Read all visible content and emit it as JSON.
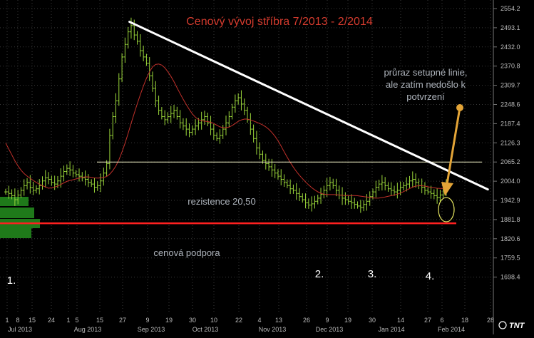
{
  "chart_data": {
    "type": "ohlc",
    "title": "Cenový vývoj stříbra 7/2013 - 2/2014",
    "y_axis": {
      "ticks": [
        "2554.2",
        "2493.1",
        "2432.0",
        "2370.8",
        "2309.7",
        "2248.6",
        "2187.4",
        "2126.3",
        "2065.2",
        "2004.0",
        "1942.9",
        "1881.8",
        "1820.6",
        "1759.5",
        "1698.4"
      ]
    },
    "x_axis": {
      "day_ticks": [
        "1",
        "8",
        "15",
        "24",
        "1",
        "5",
        "15",
        "27",
        "9",
        "19",
        "30",
        "10",
        "22",
        "4",
        "13",
        "26",
        "9",
        "19",
        "30",
        "14",
        "27",
        "6",
        "18",
        "28"
      ],
      "month_labels": [
        "Jul 2013",
        "Aug 2013",
        "Sep 2013",
        "Oct 2013",
        "Nov 2013",
        "Dec 2013",
        "Jan 2014",
        "Feb 2014"
      ]
    },
    "resistance_level": {
      "label": "rezistence 20,50",
      "value": 2065
    },
    "support_level": {
      "label": "cenová podpora",
      "value": 1870
    },
    "trendline": {
      "from": {
        "date": "2013-08-27",
        "value": 2512
      },
      "to": {
        "date": "2014-02-10",
        "value": 1978
      }
    },
    "annotations": {
      "breakout": [
        "průraz setupné linie,",
        "ale zatím nedošlo k",
        "potvrzení"
      ],
      "lows": [
        "1.",
        "2.",
        "3.",
        "4."
      ]
    },
    "logo": "TNT",
    "price_series_approx": [
      1970,
      1965,
      1958,
      1945,
      1960,
      1975,
      1990,
      2000,
      1985,
      1975,
      1980,
      1990,
      2005,
      2015,
      2010,
      2000,
      1995,
      2005,
      2020,
      2035,
      2045,
      2040,
      2030,
      2025,
      2020,
      2015,
      2010,
      2000,
      1995,
      1985,
      1990,
      2005,
      2030,
      2060,
      2150,
      2210,
      2260,
      2330,
      2400,
      2440,
      2480,
      2500,
      2470,
      2450,
      2420,
      2400,
      2380,
      2340,
      2300,
      2260,
      2230,
      2210,
      2200,
      2210,
      2220,
      2230,
      2210,
      2190,
      2180,
      2170,
      2160,
      2170,
      2180,
      2190,
      2200,
      2210,
      2190,
      2170,
      2150,
      2140,
      2150,
      2170,
      2190,
      2210,
      2240,
      2260,
      2270,
      2250,
      2230,
      2200,
      2170,
      2140,
      2110,
      2090,
      2070,
      2060,
      2050,
      2040,
      2030,
      2020,
      2010,
      2000,
      1990,
      1980,
      1975,
      1965,
      1955,
      1945,
      1935,
      1928,
      1932,
      1940,
      1950,
      1962,
      1975,
      1990,
      2000,
      1990,
      1975,
      1960,
      1950,
      1945,
      1940,
      1935,
      1930,
      1925,
      1920,
      1930,
      1940,
      1955,
      1970,
      1985,
      1995,
      2000,
      1990,
      1980,
      1975,
      1970,
      1975,
      1985,
      1990,
      1995,
      2005,
      2010,
      2000,
      1990,
      1985,
      1975,
      1970,
      1965,
      1958,
      1952,
      1960,
      1975,
      1990
    ]
  }
}
